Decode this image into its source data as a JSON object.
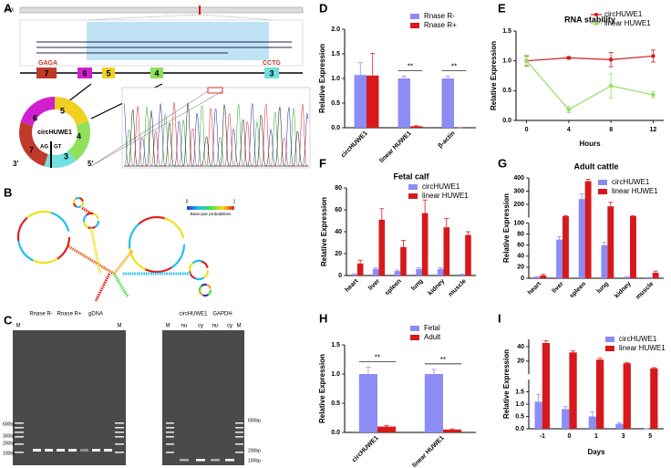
{
  "panel_labels": [
    "A",
    "B",
    "C",
    "D",
    "E",
    "F",
    "G",
    "H",
    "I"
  ],
  "panel_a": {
    "chromosome": "chrX",
    "exons": [
      "7",
      "6",
      "5",
      "4",
      "3"
    ],
    "left_junction": "GAGA",
    "right_junction": "CCTG",
    "circle_exons": [
      "5",
      "6",
      "4",
      "7",
      "3"
    ],
    "circ_name": "circHUWE1",
    "acceptor": "AG",
    "donor": "GT",
    "end3": "3'",
    "end5": "5'"
  },
  "panel_b": {
    "scale": [
      0,
      1
    ],
    "scale_label": "Base-pair probabilities"
  },
  "panel_c": {
    "left_gel": {
      "lanes": [
        "M",
        "Rnase R-",
        "Rnase R+",
        "gDNA",
        "M"
      ],
      "markers": [
        "600bp",
        "300bp",
        "200bp",
        "100bp"
      ]
    },
    "right_gel": {
      "lanes": [
        "M",
        "circHUWE1",
        "GAPDH",
        "M"
      ],
      "sublanes": [
        "nu",
        "cy",
        "nu",
        "cy"
      ],
      "markers": [
        "600bp",
        "200bp",
        "100bp"
      ]
    }
  },
  "chart_data": [
    {
      "type": "bar",
      "y_label": "Relative Expression",
      "categories": [
        "circHUWE1",
        "linear HUWE1",
        "β-actin"
      ],
      "series": [
        {
          "name": "Rnase R-",
          "color": "#8c8cf5",
          "values": [
            1.07,
            1.0,
            1.0
          ],
          "errors": [
            0.25,
            0.05,
            0.05
          ]
        },
        {
          "name": "Rnase R+",
          "color": "#d7191c",
          "values": [
            1.06,
            0.03,
            0.0
          ],
          "errors": [
            0.45,
            0.01,
            0.0
          ]
        }
      ],
      "ylim": [
        0,
        2
      ],
      "yticks": [
        {
          "value": 0,
          "label": "0.0"
        },
        {
          "value": 0.5,
          "label": "0.5"
        },
        {
          "value": 1,
          "label": "1.0"
        },
        {
          "value": 1.5,
          "label": "1.5"
        },
        {
          "value": 2,
          "label": "2.0"
        }
      ],
      "annotations": [
        "**",
        "**"
      ]
    },
    {
      "type": "line",
      "title": "RNA stability",
      "y_label": "Relative Expression",
      "x_label": "Hours",
      "x": [
        0,
        4,
        8,
        12
      ],
      "series": [
        {
          "name": "circHUWE1",
          "color": "#d7191c",
          "values": [
            1.0,
            1.05,
            1.02,
            1.08
          ],
          "errors": [
            0.08,
            0.02,
            0.12,
            0.1
          ]
        },
        {
          "name": "linear HUWE1",
          "color": "#8fe05a",
          "values": [
            1.0,
            0.18,
            0.58,
            0.43
          ],
          "errors": [
            0.1,
            0.05,
            0.2,
            0.05
          ]
        }
      ],
      "xlim": [
        -1,
        13
      ],
      "xticks": [
        0,
        4,
        8,
        12
      ],
      "ylim": [
        0,
        1.5
      ],
      "yticks": [
        {
          "value": 0,
          "label": "0.0"
        },
        {
          "value": 0.5,
          "label": "0.5"
        },
        {
          "value": 1,
          "label": "1.0"
        },
        {
          "value": 1.5,
          "label": "1.5"
        }
      ]
    },
    {
      "type": "bar",
      "title": "Fetal calf",
      "y_label": "Relative Expression",
      "categories": [
        "heart",
        "liver",
        "spleen",
        "lung",
        "kidney",
        "muscle"
      ],
      "series": [
        {
          "name": "circHUWE1",
          "color": "#8c8cf5",
          "values": [
            1,
            6,
            4,
            6,
            6,
            1
          ],
          "errors": [
            0.5,
            1,
            1,
            1,
            1,
            0.3
          ]
        },
        {
          "name": "linear HUWE1",
          "color": "#d7191c",
          "values": [
            11,
            51,
            26,
            57,
            44,
            37
          ],
          "errors": [
            3,
            10,
            6,
            12,
            8,
            3
          ]
        }
      ],
      "ylim": [
        0,
        80
      ],
      "yticks": [
        0,
        20,
        40,
        60,
        80
      ]
    },
    {
      "type": "bar",
      "title": "Adult cattle",
      "y_label": "Relative Expression",
      "categories": [
        "heart",
        "liver",
        "spleen",
        "lung",
        "kidney",
        "muscle"
      ],
      "series": [
        {
          "name": "circHUWE1",
          "color": "#8c8cf5",
          "values": [
            2,
            70,
            240,
            60,
            2,
            1
          ],
          "errors": [
            1,
            5,
            40,
            5,
            1,
            0.5
          ]
        },
        {
          "name": "linear HUWE1",
          "color": "#d7191c",
          "values": [
            5,
            110,
            375,
            185,
            110,
            10
          ],
          "errors": [
            2,
            5,
            15,
            30,
            5,
            3
          ]
        }
      ],
      "ylim": [
        0,
        400
      ],
      "ybreak": 100,
      "yticks": [
        0,
        20,
        40,
        60,
        80,
        100,
        200,
        300,
        400
      ]
    },
    {
      "type": "bar",
      "y_label": "Relative Expression",
      "categories": [
        "circHUWE1",
        "linear HUWE1"
      ],
      "series": [
        {
          "name": "Fetal",
          "color": "#8c8cf5",
          "values": [
            1.0,
            1.0
          ],
          "errors": [
            0.12,
            0.08
          ]
        },
        {
          "name": "Adult",
          "color": "#d7191c",
          "values": [
            0.1,
            0.05
          ],
          "errors": [
            0.02,
            0.01
          ]
        }
      ],
      "ylim": [
        0,
        1.5
      ],
      "yticks": [
        {
          "value": 0,
          "label": "0.0"
        },
        {
          "value": 0.5,
          "label": "0.5"
        },
        {
          "value": 1,
          "label": "1.0"
        },
        {
          "value": 1.5,
          "label": "1.5"
        }
      ],
      "annotations": [
        "**",
        "**"
      ]
    },
    {
      "type": "bar",
      "y_label": "Relative Expression",
      "x_label": "Days",
      "categories": [
        "-1",
        "0",
        "1",
        "3",
        "5"
      ],
      "series": [
        {
          "name": "circHUWE1",
          "color": "#8c8cf5",
          "values": [
            1.1,
            0.8,
            0.5,
            0.2,
            0.0
          ],
          "errors": [
            0.3,
            0.1,
            0.2,
            0.05,
            0.0
          ]
        },
        {
          "name": "linear HUWE1",
          "color": "#d7191c",
          "values": [
            45,
            32,
            22,
            17,
            10
          ],
          "errors": [
            3,
            2,
            2,
            1,
            1
          ]
        }
      ],
      "ylim": [
        0,
        50
      ],
      "ybreak": 2,
      "yticks": [
        {
          "value": 0,
          "label": "0.0"
        },
        {
          "value": 0.5,
          "label": "0.5"
        },
        {
          "value": 1,
          "label": "1.0"
        },
        {
          "value": 1.5,
          "label": "1.5"
        },
        20,
        40
      ]
    }
  ]
}
